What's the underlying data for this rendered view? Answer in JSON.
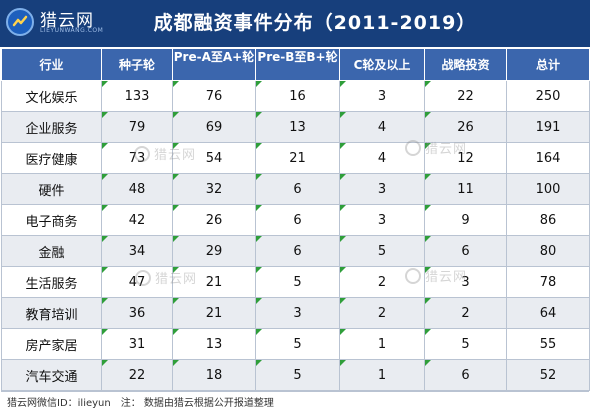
{
  "header": {
    "logo_name": "猎云网",
    "logo_sub": "LIEYUNWANG.COM",
    "title": "成都融资事件分布（2011-2019）"
  },
  "table": {
    "columns": [
      "行业",
      "种子轮",
      "Pre-A至A+轮",
      "Pre-B至B+轮",
      "C轮及以上",
      "战略投资",
      "总计"
    ],
    "rows": [
      [
        "文化娱乐",
        "133",
        "76",
        "16",
        "3",
        "22",
        "250"
      ],
      [
        "企业服务",
        "79",
        "69",
        "13",
        "4",
        "26",
        "191"
      ],
      [
        "医疗健康",
        "73",
        "54",
        "21",
        "4",
        "12",
        "164"
      ],
      [
        "硬件",
        "48",
        "32",
        "6",
        "3",
        "11",
        "100"
      ],
      [
        "电子商务",
        "42",
        "26",
        "6",
        "3",
        "9",
        "86"
      ],
      [
        "金融",
        "34",
        "29",
        "6",
        "5",
        "6",
        "80"
      ],
      [
        "生活服务",
        "47",
        "21",
        "5",
        "2",
        "3",
        "78"
      ],
      [
        "教育培训",
        "36",
        "21",
        "3",
        "2",
        "2",
        "64"
      ],
      [
        "房产家居",
        "31",
        "13",
        "5",
        "1",
        "5",
        "55"
      ],
      [
        "汽车交通",
        "22",
        "18",
        "5",
        "1",
        "6",
        "52"
      ]
    ]
  },
  "footer": {
    "wechat": "猎云网微信ID：ilieyun",
    "note": "注：  数据由猎云根据公开报道整理"
  },
  "watermark": {
    "text": "猎云网"
  }
}
